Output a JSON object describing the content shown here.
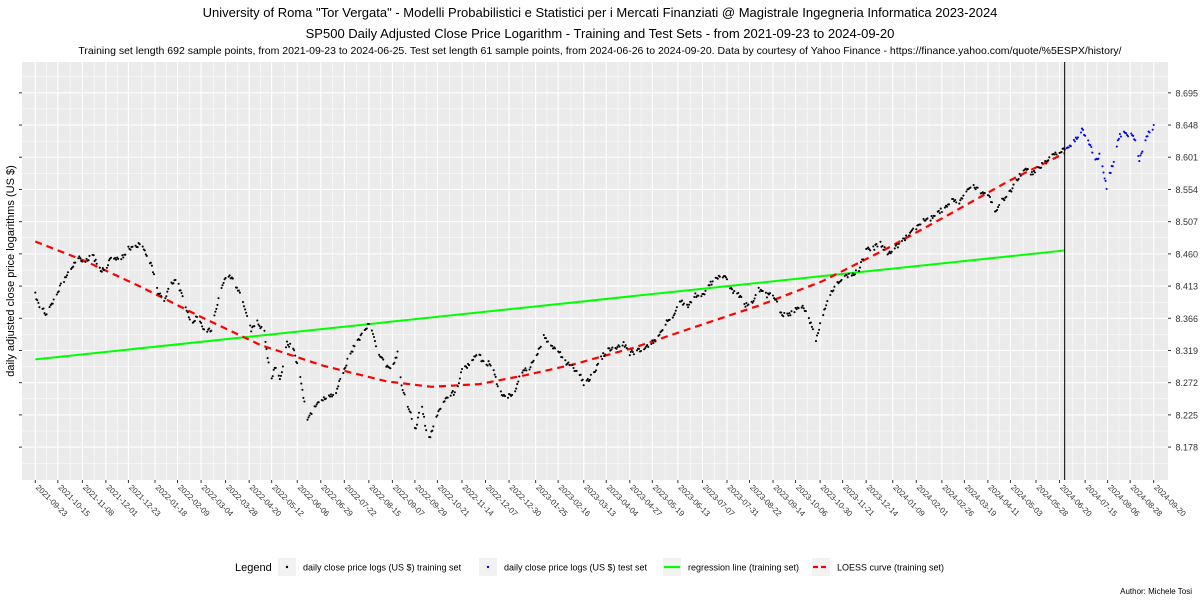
{
  "title": "University of Roma \"Tor Vergata\" - Modelli Probabilistici e Statistici per i Mercati Finanziati @ Magistrale Ingegneria Informatica 2023-2024",
  "subtitle": "SP500 Daily Adjusted Close Price Logarithm - Training and Test Sets - from 2021-09-23 to 2024-09-20",
  "caption": "Training set length 692 sample points, from 2021-09-23 to 2024-06-25. Test set length 61 sample points, from 2024-06-26 to 2024-09-20. Data by courtesy of Yahoo Finance - https://finance.yahoo.com/quote/%5ESPX/history/",
  "author": "Author: Michele Tosi",
  "colors": {
    "panel": "#ebebeb",
    "grid": "#ffffff",
    "train": "#000000",
    "test": "#0000ff",
    "regression": "#00ff00",
    "loess": "#ff0000",
    "split_line": "#000000"
  },
  "chart_data": {
    "type": "scatter",
    "ylabel": "daily adjusted close price logarithms (US $)",
    "xlabel": "",
    "x_range": [
      "2021-09-10",
      "2024-10-04"
    ],
    "ylim": [
      8.13,
      8.74
    ],
    "y_ticks": [
      "8.178",
      "8.225",
      "8.272",
      "8.319",
      "8.366",
      "8.413",
      "8.460",
      "8.507",
      "8.554",
      "8.601",
      "8.648",
      "8.695"
    ],
    "x_ticks": [
      "2021-09-23",
      "2021-10-15",
      "2021-11-08",
      "2021-12-01",
      "2021-12-23",
      "2022-01-18",
      "2022-02-09",
      "2022-03-04",
      "2022-03-28",
      "2022-04-20",
      "2022-05-12",
      "2022-06-06",
      "2022-06-29",
      "2022-07-22",
      "2022-08-15",
      "2022-09-07",
      "2022-09-29",
      "2022-10-21",
      "2022-11-14",
      "2022-12-07",
      "2022-12-30",
      "2023-01-25",
      "2023-02-16",
      "2023-03-13",
      "2023-04-04",
      "2023-04-27",
      "2023-05-19",
      "2023-06-13",
      "2023-07-07",
      "2023-07-31",
      "2023-08-22",
      "2023-09-14",
      "2023-10-06",
      "2023-10-30",
      "2023-11-21",
      "2023-12-14",
      "2024-01-09",
      "2024-02-01",
      "2024-02-26",
      "2024-03-19",
      "2024-04-11",
      "2024-05-03",
      "2024-05-28",
      "2024-06-20",
      "2024-07-15",
      "2024-08-06",
      "2024-08-28",
      "2024-09-20"
    ],
    "split_date": "2024-06-25",
    "legend_position": "bottom",
    "legend_title": "Legend",
    "legend": [
      {
        "label": "daily close price logs (US $) training set",
        "kind": "point",
        "color": "#000000"
      },
      {
        "label": "daily close price logs (US $) test set",
        "kind": "point",
        "color": "#0000ff"
      },
      {
        "label": "regression line (training set)",
        "kind": "line",
        "color": "#00ff00"
      },
      {
        "label": "LOESS curve (training set)",
        "kind": "dash",
        "color": "#ff0000"
      }
    ],
    "series": [
      {
        "name": "daily close price logs (US $) training set",
        "anchors": [
          [
            "2021-09-23",
            8.4
          ],
          [
            "2021-09-28",
            8.382
          ],
          [
            "2021-10-04",
            8.372
          ],
          [
            "2021-10-08",
            8.385
          ],
          [
            "2021-10-15",
            8.405
          ],
          [
            "2021-10-22",
            8.425
          ],
          [
            "2021-10-29",
            8.44
          ],
          [
            "2021-11-05",
            8.455
          ],
          [
            "2021-11-10",
            8.45
          ],
          [
            "2021-11-18",
            8.458
          ],
          [
            "2021-11-26",
            8.435
          ],
          [
            "2021-12-01",
            8.44
          ],
          [
            "2021-12-08",
            8.458
          ],
          [
            "2021-12-14",
            8.448
          ],
          [
            "2021-12-23",
            8.468
          ],
          [
            "2021-12-31",
            8.47
          ],
          [
            "2022-01-04",
            8.478
          ],
          [
            "2022-01-10",
            8.455
          ],
          [
            "2022-01-14",
            8.448
          ],
          [
            "2022-01-21",
            8.405
          ],
          [
            "2022-01-27",
            8.39
          ],
          [
            "2022-02-02",
            8.418
          ],
          [
            "2022-02-09",
            8.42
          ],
          [
            "2022-02-14",
            8.395
          ],
          [
            "2022-02-23",
            8.355
          ],
          [
            "2022-03-01",
            8.372
          ],
          [
            "2022-03-08",
            8.345
          ],
          [
            "2022-03-14",
            8.35
          ],
          [
            "2022-03-21",
            8.395
          ],
          [
            "2022-03-29",
            8.432
          ],
          [
            "2022-04-05",
            8.42
          ],
          [
            "2022-04-13",
            8.395
          ],
          [
            "2022-04-22",
            8.35
          ],
          [
            "2022-04-28",
            8.36
          ],
          [
            "2022-05-05",
            8.345
          ],
          [
            "2022-05-09",
            8.3
          ],
          [
            "2022-05-12",
            8.28
          ],
          [
            "2022-05-17",
            8.3
          ],
          [
            "2022-05-20",
            8.275
          ],
          [
            "2022-05-27",
            8.33
          ],
          [
            "2022-06-03",
            8.32
          ],
          [
            "2022-06-10",
            8.27
          ],
          [
            "2022-06-16",
            8.215
          ],
          [
            "2022-06-22",
            8.235
          ],
          [
            "2022-06-29",
            8.245
          ],
          [
            "2022-07-06",
            8.255
          ],
          [
            "2022-07-13",
            8.255
          ],
          [
            "2022-07-20",
            8.285
          ],
          [
            "2022-07-28",
            8.315
          ],
          [
            "2022-08-03",
            8.33
          ],
          [
            "2022-08-10",
            8.345
          ],
          [
            "2022-08-16",
            8.362
          ],
          [
            "2022-08-23",
            8.318
          ],
          [
            "2022-08-30",
            8.3
          ],
          [
            "2022-09-06",
            8.29
          ],
          [
            "2022-09-12",
            8.315
          ],
          [
            "2022-09-16",
            8.268
          ],
          [
            "2022-09-23",
            8.235
          ],
          [
            "2022-09-30",
            8.205
          ],
          [
            "2022-10-05",
            8.245
          ],
          [
            "2022-10-12",
            8.185
          ],
          [
            "2022-10-18",
            8.215
          ],
          [
            "2022-10-25",
            8.24
          ],
          [
            "2022-11-01",
            8.255
          ],
          [
            "2022-11-08",
            8.258
          ],
          [
            "2022-11-14",
            8.29
          ],
          [
            "2022-11-22",
            8.3
          ],
          [
            "2022-11-30",
            8.315
          ],
          [
            "2022-12-05",
            8.3
          ],
          [
            "2022-12-13",
            8.3
          ],
          [
            "2022-12-20",
            8.26
          ],
          [
            "2022-12-28",
            8.25
          ],
          [
            "2023-01-05",
            8.262
          ],
          [
            "2023-01-12",
            8.29
          ],
          [
            "2023-01-20",
            8.295
          ],
          [
            "2023-01-27",
            8.315
          ],
          [
            "2023-02-02",
            8.34
          ],
          [
            "2023-02-09",
            8.325
          ],
          [
            "2023-02-16",
            8.318
          ],
          [
            "2023-02-24",
            8.3
          ],
          [
            "2023-03-02",
            8.295
          ],
          [
            "2023-03-09",
            8.285
          ],
          [
            "2023-03-13",
            8.27
          ],
          [
            "2023-03-17",
            8.275
          ],
          [
            "2023-03-24",
            8.29
          ],
          [
            "2023-03-31",
            8.31
          ],
          [
            "2023-04-06",
            8.32
          ],
          [
            "2023-04-14",
            8.325
          ],
          [
            "2023-04-21",
            8.33
          ],
          [
            "2023-04-27",
            8.315
          ],
          [
            "2023-05-04",
            8.318
          ],
          [
            "2023-05-11",
            8.322
          ],
          [
            "2023-05-19",
            8.332
          ],
          [
            "2023-05-26",
            8.34
          ],
          [
            "2023-06-02",
            8.36
          ],
          [
            "2023-06-09",
            8.37
          ],
          [
            "2023-06-15",
            8.39
          ],
          [
            "2023-06-23",
            8.385
          ],
          [
            "2023-06-30",
            8.4
          ],
          [
            "2023-07-07",
            8.398
          ],
          [
            "2023-07-14",
            8.415
          ],
          [
            "2023-07-21",
            8.425
          ],
          [
            "2023-07-28",
            8.428
          ],
          [
            "2023-08-04",
            8.408
          ],
          [
            "2023-08-11",
            8.402
          ],
          [
            "2023-08-18",
            8.385
          ],
          [
            "2023-08-25",
            8.392
          ],
          [
            "2023-08-31",
            8.408
          ],
          [
            "2023-09-08",
            8.4
          ],
          [
            "2023-09-15",
            8.398
          ],
          [
            "2023-09-22",
            8.372
          ],
          [
            "2023-09-29",
            8.37
          ],
          [
            "2023-10-06",
            8.378
          ],
          [
            "2023-10-12",
            8.385
          ],
          [
            "2023-10-20",
            8.362
          ],
          [
            "2023-10-26",
            8.335
          ],
          [
            "2023-11-01",
            8.368
          ],
          [
            "2023-11-08",
            8.398
          ],
          [
            "2023-11-15",
            8.415
          ],
          [
            "2023-11-22",
            8.425
          ],
          [
            "2023-11-30",
            8.43
          ],
          [
            "2023-12-07",
            8.438
          ],
          [
            "2023-12-14",
            8.465
          ],
          [
            "2023-12-21",
            8.468
          ],
          [
            "2023-12-28",
            8.475
          ],
          [
            "2024-01-04",
            8.46
          ],
          [
            "2024-01-11",
            8.468
          ],
          [
            "2024-01-19",
            8.48
          ],
          [
            "2024-01-26",
            8.49
          ],
          [
            "2024-02-02",
            8.5
          ],
          [
            "2024-02-09",
            8.51
          ],
          [
            "2024-02-16",
            8.512
          ],
          [
            "2024-02-23",
            8.52
          ],
          [
            "2024-03-01",
            8.53
          ],
          [
            "2024-03-08",
            8.538
          ],
          [
            "2024-03-15",
            8.535
          ],
          [
            "2024-03-22",
            8.555
          ],
          [
            "2024-03-28",
            8.56
          ],
          [
            "2024-04-05",
            8.55
          ],
          [
            "2024-04-12",
            8.545
          ],
          [
            "2024-04-19",
            8.52
          ],
          [
            "2024-04-26",
            8.54
          ],
          [
            "2024-05-03",
            8.55
          ],
          [
            "2024-05-10",
            8.57
          ],
          [
            "2024-05-17",
            8.582
          ],
          [
            "2024-05-24",
            8.578
          ],
          [
            "2024-05-31",
            8.585
          ],
          [
            "2024-06-07",
            8.595
          ],
          [
            "2024-06-14",
            8.605
          ],
          [
            "2024-06-21",
            8.61
          ],
          [
            "2024-06-25",
            8.612
          ]
        ]
      },
      {
        "name": "daily close price logs (US $) test set",
        "anchors": [
          [
            "2024-06-26",
            8.612
          ],
          [
            "2024-07-02",
            8.62
          ],
          [
            "2024-07-08",
            8.632
          ],
          [
            "2024-07-12",
            8.64
          ],
          [
            "2024-07-17",
            8.628
          ],
          [
            "2024-07-22",
            8.61
          ],
          [
            "2024-07-25",
            8.598
          ],
          [
            "2024-07-30",
            8.605
          ],
          [
            "2024-08-02",
            8.58
          ],
          [
            "2024-08-05",
            8.555
          ],
          [
            "2024-08-08",
            8.575
          ],
          [
            "2024-08-13",
            8.6
          ],
          [
            "2024-08-16",
            8.628
          ],
          [
            "2024-08-21",
            8.638
          ],
          [
            "2024-08-26",
            8.635
          ],
          [
            "2024-08-29",
            8.638
          ],
          [
            "2024-09-03",
            8.62
          ],
          [
            "2024-09-06",
            8.598
          ],
          [
            "2024-09-10",
            8.615
          ],
          [
            "2024-09-13",
            8.632
          ],
          [
            "2024-09-17",
            8.638
          ],
          [
            "2024-09-20",
            8.648
          ]
        ]
      },
      {
        "name": "regression line (training set)",
        "points": [
          [
            "2021-09-23",
            8.306
          ],
          [
            "2024-06-25",
            8.465
          ]
        ]
      },
      {
        "name": "LOESS curve (training set)",
        "points": [
          [
            "2021-09-23",
            8.478
          ],
          [
            "2021-11-10",
            8.45
          ],
          [
            "2022-01-04",
            8.412
          ],
          [
            "2022-03-01",
            8.37
          ],
          [
            "2022-05-01",
            8.327
          ],
          [
            "2022-07-01",
            8.297
          ],
          [
            "2022-09-01",
            8.274
          ],
          [
            "2022-10-15",
            8.266
          ],
          [
            "2022-12-01",
            8.27
          ],
          [
            "2023-01-15",
            8.283
          ],
          [
            "2023-03-01",
            8.298
          ],
          [
            "2023-05-01",
            8.323
          ],
          [
            "2023-07-01",
            8.354
          ],
          [
            "2023-09-01",
            8.385
          ],
          [
            "2023-11-01",
            8.42
          ],
          [
            "2024-01-01",
            8.466
          ],
          [
            "2024-03-01",
            8.515
          ],
          [
            "2024-05-01",
            8.566
          ],
          [
            "2024-06-25",
            8.607
          ]
        ]
      }
    ]
  }
}
